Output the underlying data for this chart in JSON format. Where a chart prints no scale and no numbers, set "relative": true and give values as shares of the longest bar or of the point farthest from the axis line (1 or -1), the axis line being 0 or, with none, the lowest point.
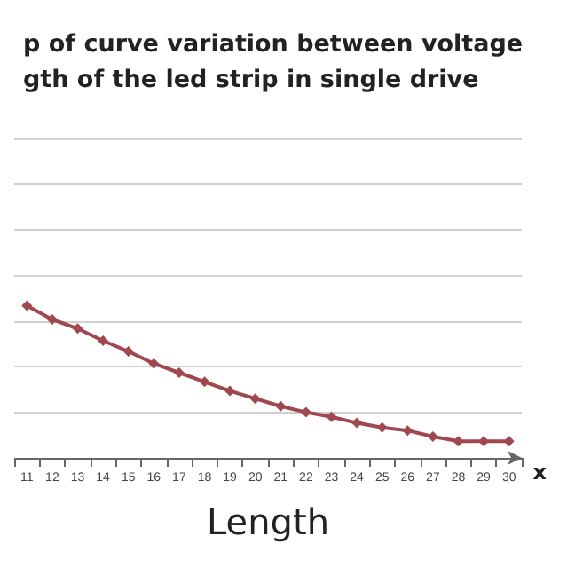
{
  "chart_data": {
    "type": "line",
    "title": "p of curve variation between voltage\ngth of the led strip in single drive",
    "xlabel": "Length",
    "annotations": [
      "x"
    ],
    "relative": true,
    "grid": "y",
    "marker": "diamond",
    "line_style": "solid",
    "categories": [
      "11",
      "12",
      "13",
      "14",
      "15",
      "16",
      "17",
      "18",
      "19",
      "20",
      "21",
      "22",
      "23",
      "24",
      "25",
      "26",
      "27",
      "28",
      "29",
      "30"
    ],
    "series": [
      {
        "color": "#a0474f",
        "values": [
          1,
          0.91,
          0.85,
          0.77,
          0.7,
          0.62,
          0.56,
          0.5,
          0.44,
          0.39,
          0.34,
          0.3,
          0.27,
          0.23,
          0.2,
          0.18,
          0.14,
          0.11,
          0.11,
          0.11
        ]
      }
    ]
  }
}
